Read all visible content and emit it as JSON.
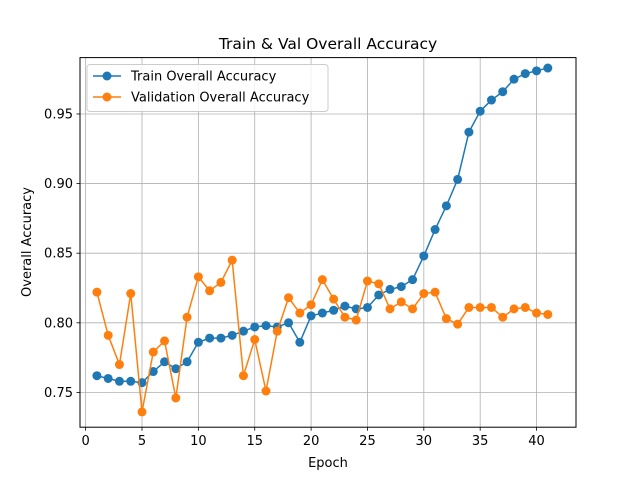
{
  "chart_data": {
    "type": "line",
    "title": "Train & Val Overall Accuracy",
    "xlabel": "Epoch",
    "ylabel": "Overall Accuracy",
    "xlim": [
      -0.5,
      43.5
    ],
    "ylim": [
      0.725,
      0.9905
    ],
    "xticks": [
      0,
      5,
      10,
      15,
      20,
      25,
      30,
      35,
      40
    ],
    "yticks": [
      0.75,
      0.8,
      0.85,
      0.9,
      0.95
    ],
    "ytick_labels": [
      "0.75",
      "0.80",
      "0.85",
      "0.90",
      "0.95"
    ],
    "grid": true,
    "legend_position": "upper-left",
    "x": [
      1,
      2,
      3,
      4,
      5,
      6,
      7,
      8,
      9,
      10,
      11,
      12,
      13,
      14,
      15,
      16,
      17,
      18,
      19,
      20,
      21,
      22,
      23,
      24,
      25,
      26,
      27,
      28,
      29,
      30,
      31,
      32,
      33,
      34,
      35,
      36,
      37,
      38,
      39,
      40,
      41
    ],
    "series": [
      {
        "name": "Train Overall Accuracy",
        "color": "#1f77b4",
        "values": [
          0.762,
          0.76,
          0.758,
          0.758,
          0.757,
          0.765,
          0.772,
          0.767,
          0.772,
          0.786,
          0.789,
          0.789,
          0.791,
          0.794,
          0.797,
          0.798,
          0.797,
          0.8,
          0.786,
          0.805,
          0.807,
          0.809,
          0.812,
          0.81,
          0.811,
          0.82,
          0.824,
          0.826,
          0.831,
          0.848,
          0.867,
          0.884,
          0.903,
          0.937,
          0.952,
          0.96,
          0.966,
          0.975,
          0.979,
          0.981,
          0.983
        ]
      },
      {
        "name": "Validation Overall Accuracy",
        "color": "#ff7f0e",
        "values": [
          0.822,
          0.791,
          0.77,
          0.821,
          0.736,
          0.779,
          0.787,
          0.746,
          0.804,
          0.833,
          0.823,
          0.829,
          0.845,
          0.762,
          0.788,
          0.751,
          0.794,
          0.818,
          0.807,
          0.813,
          0.831,
          0.817,
          0.804,
          0.802,
          0.83,
          0.828,
          0.81,
          0.815,
          0.81,
          0.821,
          0.822,
          0.803,
          0.799,
          0.811,
          0.811,
          0.811,
          0.804,
          0.81,
          0.811,
          0.807,
          0.806
        ]
      }
    ]
  }
}
